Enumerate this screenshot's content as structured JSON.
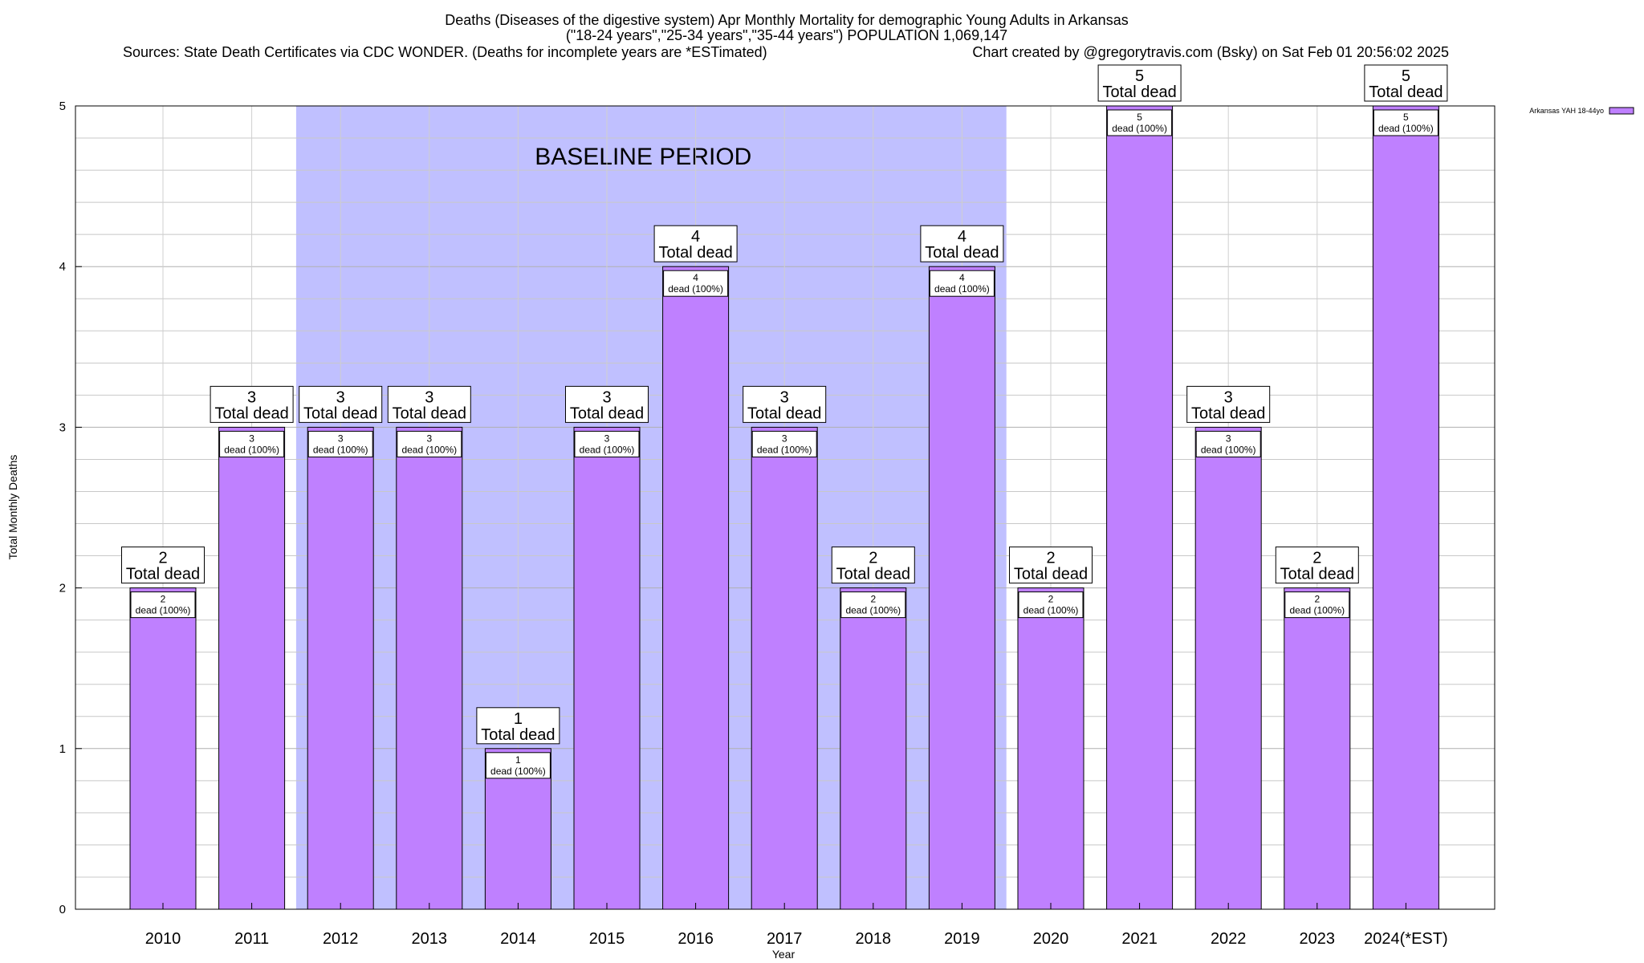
{
  "chart_data": {
    "type": "bar",
    "title": "Deaths (Diseases of the digestive system) Apr Monthly Mortality for demographic Young Adults in Arkansas",
    "subtitle": "(\"18-24 years\",\"25-34 years\",\"35-44 years\") POPULATION 1,069,147",
    "source": "Sources: State Death Certificates via CDC WONDER. (Deaths for incomplete years are *ESTimated)",
    "credit": "Chart created by @gregorytravis.com (Bsky) on Sat Feb 01 20:56:02 2025",
    "xlabel": "Year",
    "ylabel": "Total Monthly Deaths",
    "ylim": [
      0,
      5
    ],
    "yticks": [
      0,
      1,
      2,
      3,
      4,
      5
    ],
    "grid": true,
    "legend_position": "top-right",
    "categories": [
      "2010",
      "2011",
      "2012",
      "2013",
      "2014",
      "2015",
      "2016",
      "2017",
      "2018",
      "2019",
      "2020",
      "2021",
      "2022",
      "2023",
      "2024(*EST)"
    ],
    "series": [
      {
        "name": "Arkansas YAH 18-44yo",
        "color": "#bf80ff",
        "values": [
          2,
          3,
          3,
          3,
          1,
          3,
          4,
          3,
          2,
          4,
          2,
          5,
          3,
          2,
          5
        ]
      }
    ],
    "total_label_suffix": "Total dead",
    "segment_label_suffix": "dead (100%)",
    "baseline": {
      "label": "BASELINE PERIOD",
      "start": "2012",
      "end": "2019",
      "color": "#c0c0ff"
    }
  }
}
